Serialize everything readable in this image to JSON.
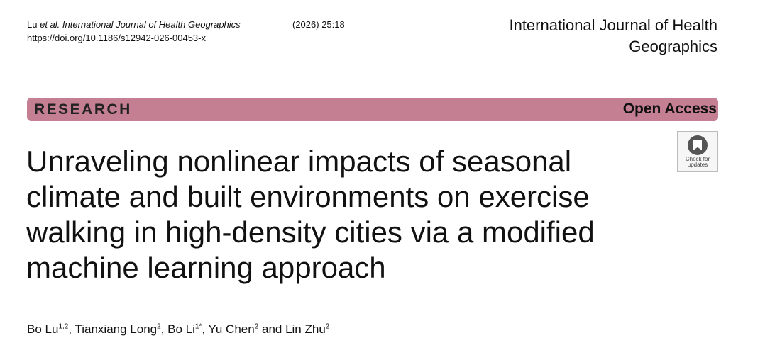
{
  "header": {
    "citation_author": "Lu",
    "citation_etal": "et al.",
    "citation_journal": "International Journal of Health Geographics",
    "year_volume": "(2026) 25:18",
    "doi": "https://doi.org/10.1186/s12942-026-00453-x"
  },
  "journal_title_lines": [
    "International Journal of Health",
    "Geographics"
  ],
  "banner": {
    "type": "RESEARCH",
    "access": "Open Access",
    "color": "#c47f92"
  },
  "check_updates": {
    "line1": "Check for",
    "line2": "updates",
    "icon": "bookmark-icon"
  },
  "title_lines": [
    "Unraveling nonlinear impacts of seasonal",
    "climate and built environments on exercise",
    "walking in high-density cities via a modified",
    "machine learning approach"
  ],
  "authors": [
    {
      "name": "Bo Lu",
      "aff": "1,2",
      "sep": ", "
    },
    {
      "name": "Tianxiang Long",
      "aff": "2",
      "sep": ", "
    },
    {
      "name": "Bo Li",
      "aff": "1*",
      "sep": ", "
    },
    {
      "name": "Yu Chen",
      "aff": "2",
      "sep": " and "
    },
    {
      "name": "Lin Zhu",
      "aff": "2",
      "sep": ""
    }
  ]
}
